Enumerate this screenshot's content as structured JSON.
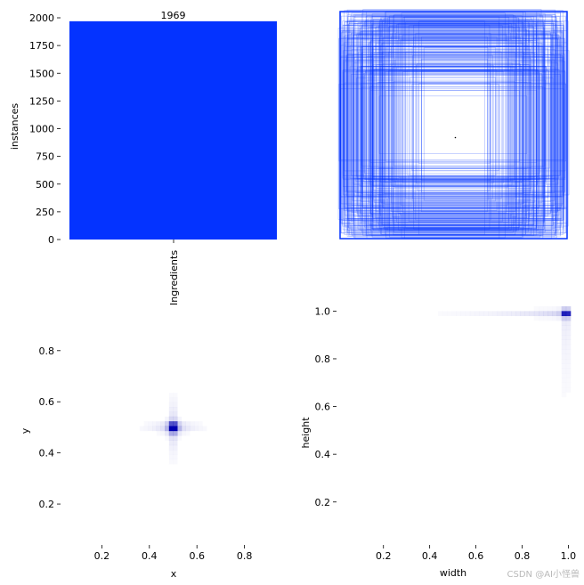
{
  "chart_data": [
    {
      "type": "bar",
      "categories": [
        "Ingredients"
      ],
      "values": [
        1969
      ],
      "data_labels": [
        "1969"
      ],
      "ylabel": "instances",
      "ylim": [
        0,
        2000
      ],
      "yticks": [
        0,
        250,
        500,
        750,
        1000,
        1250,
        1500,
        1750,
        2000
      ],
      "color": "#0433ff"
    },
    {
      "type": "boxes",
      "description_color": "#0433ff",
      "axes_visible": false
    },
    {
      "type": "heatmap",
      "xlabel": "x",
      "ylabel": "y",
      "xlim": [
        0.06,
        0.94
      ],
      "ylim": [
        0.04,
        0.97
      ],
      "xticks": [
        0.2,
        0.4,
        0.6,
        0.8
      ],
      "yticks": [
        0.2,
        0.4,
        0.6,
        0.8
      ],
      "peak": [
        0.5,
        0.5
      ],
      "color": "#0000b0"
    },
    {
      "type": "heatmap",
      "xlabel": "width",
      "ylabel": "height",
      "xlim": [
        0.02,
        1.01
      ],
      "ylim": [
        0.02,
        1.02
      ],
      "xticks": [
        0.2,
        0.4,
        0.6,
        0.8,
        1.0
      ],
      "yticks": [
        0.2,
        0.4,
        0.6,
        0.8,
        1.0
      ],
      "peak": [
        0.99,
        0.99
      ],
      "color": "#0000b0"
    }
  ],
  "watermark": "CSDN @AI小怪兽"
}
